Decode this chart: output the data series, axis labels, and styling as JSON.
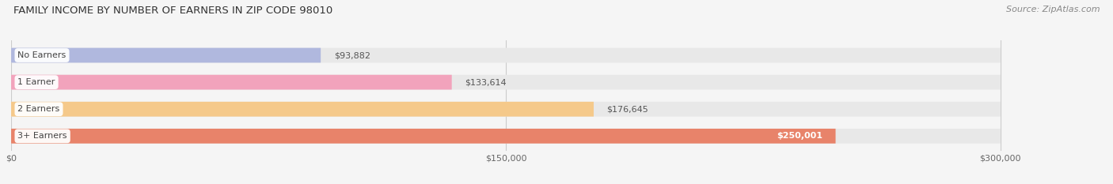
{
  "title": "FAMILY INCOME BY NUMBER OF EARNERS IN ZIP CODE 98010",
  "source": "Source: ZipAtlas.com",
  "categories": [
    "No Earners",
    "1 Earner",
    "2 Earners",
    "3+ Earners"
  ],
  "values": [
    93882,
    133614,
    176645,
    250001
  ],
  "bar_colors": [
    "#b0b8de",
    "#f2a3bc",
    "#f5c98a",
    "#e8836a"
  ],
  "bar_bg_color": "#e8e8e8",
  "background_color": "#f5f5f5",
  "xlim": [
    0,
    300000
  ],
  "xlim_max_display": 324000,
  "xticks": [
    0,
    150000,
    300000
  ],
  "xtick_labels": [
    "$0",
    "$150,000",
    "$300,000"
  ],
  "value_labels": [
    "$93,882",
    "$133,614",
    "$176,645",
    "$250,001"
  ],
  "value_inside": [
    false,
    false,
    false,
    true
  ],
  "title_fontsize": 9.5,
  "source_fontsize": 8,
  "label_fontsize": 8,
  "value_fontsize": 8,
  "tick_fontsize": 8
}
